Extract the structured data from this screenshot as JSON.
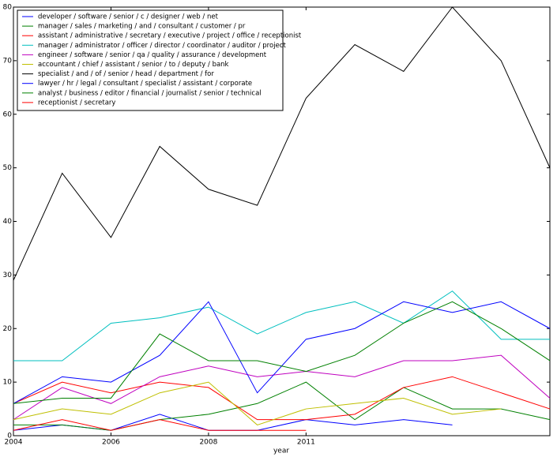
{
  "chart_data": {
    "type": "line",
    "x_label": "year",
    "categories": [
      "2004",
      null,
      "2006",
      null,
      "2008",
      null,
      "2011",
      null,
      null,
      null,
      null,
      null
    ],
    "ylim": [
      0,
      80
    ],
    "yticks": [
      0,
      10,
      20,
      30,
      40,
      50,
      60,
      70,
      80
    ],
    "legend": "upper left",
    "grid": false,
    "series": [
      {
        "name": "developer / software / senior / c / designer / web / net",
        "color": "#0000ff",
        "values": [
          1,
          2,
          1,
          4,
          1,
          1,
          3,
          2,
          3,
          2,
          null,
          null
        ]
      },
      {
        "name": "manager / sales / marketing / and / consultant / customer / pr",
        "color": "#008000",
        "values": [
          2,
          2,
          1,
          3,
          4,
          6,
          10,
          3,
          9,
          5,
          5,
          3
        ]
      },
      {
        "name": "assistant / administrative / secretary / executive / project / office / receptionist",
        "color": "#ff0000",
        "values": [
          6,
          10,
          8,
          10,
          9,
          3,
          3,
          4,
          9,
          11,
          8,
          5
        ]
      },
      {
        "name": "manager / administrator / officer / director / coordinator / auditor / project",
        "color": "#00bfbf",
        "values": [
          14,
          14,
          21,
          22,
          24,
          19,
          23,
          25,
          21,
          27,
          18,
          18
        ]
      },
      {
        "name": "engineer / software / senior / qa / quality / assurance / development",
        "color": "#bf00bf",
        "values": [
          3,
          9,
          6,
          11,
          13,
          11,
          12,
          11,
          14,
          14,
          15,
          7
        ]
      },
      {
        "name": "accountant / chief / assistant / senior / to / deputy / bank",
        "color": "#bfbf00",
        "values": [
          3,
          5,
          4,
          8,
          10,
          2,
          5,
          6,
          7,
          4,
          5,
          null
        ]
      },
      {
        "name": "specialist / and / of / senior / head / department / for",
        "color": "#000000",
        "values": [
          29,
          49,
          37,
          54,
          46,
          43,
          63,
          73,
          68,
          80,
          70,
          50
        ]
      },
      {
        "name": "lawyer / hr / legal / consultant / specialist / assistant / corporate",
        "color": "#0000ff",
        "values": [
          6,
          11,
          10,
          15,
          25,
          8,
          18,
          20,
          25,
          23,
          25,
          20
        ]
      },
      {
        "name": "analyst / business / editor / financial / journalist / senior / technical",
        "color": "#008000",
        "values": [
          6,
          7,
          7,
          19,
          14,
          14,
          12,
          15,
          21,
          25,
          20,
          14
        ]
      },
      {
        "name": "receptionist / secretary",
        "color": "#ff0000",
        "values": [
          1,
          3,
          1,
          3,
          1,
          1,
          1,
          null,
          null,
          null,
          null,
          null
        ]
      }
    ]
  }
}
